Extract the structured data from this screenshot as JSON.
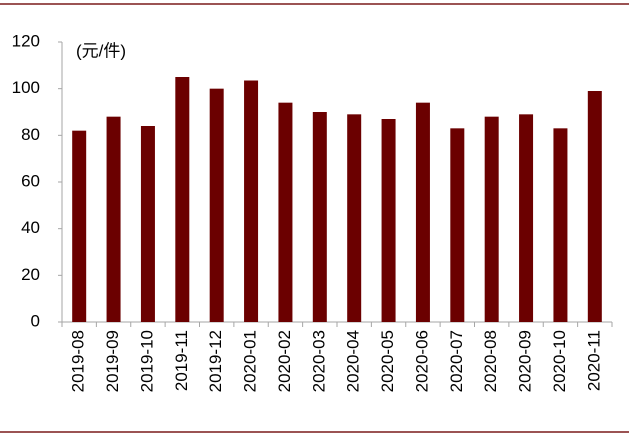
{
  "chart_data": {
    "type": "bar",
    "annotation": "(元/件)",
    "categories": [
      "2019-08",
      "2019-09",
      "2019-10",
      "2019-11",
      "2019-12",
      "2020-01",
      "2020-02",
      "2020-03",
      "2020-04",
      "2020-05",
      "2020-06",
      "2020-07",
      "2020-08",
      "2020-09",
      "2020-10",
      "2020-11"
    ],
    "values": [
      82,
      88,
      84,
      105,
      100,
      103.5,
      94,
      90,
      89,
      87,
      94,
      83,
      88,
      89,
      83,
      99
    ],
    "color": "#6b0000",
    "ylim": [
      0,
      120
    ],
    "yticks": [
      0,
      20,
      40,
      60,
      80,
      100,
      120
    ],
    "grid": false
  }
}
